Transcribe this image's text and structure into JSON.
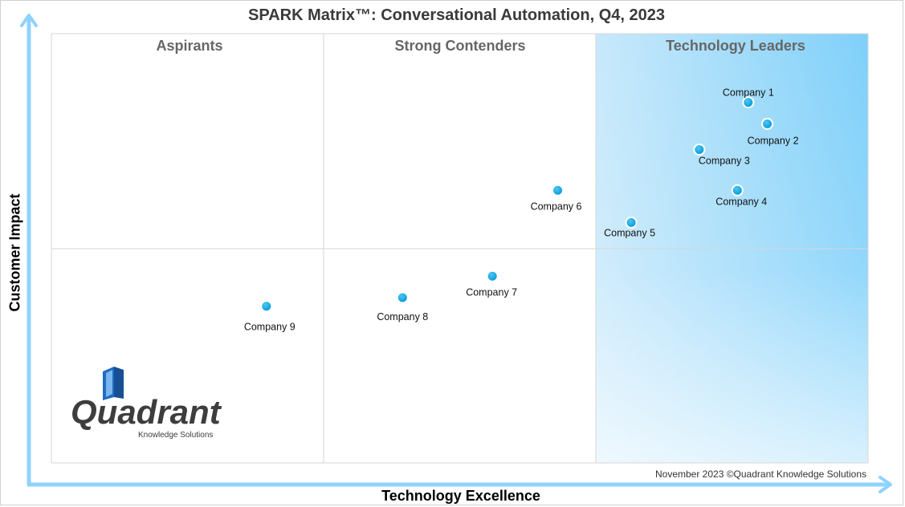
{
  "chart_data": {
    "type": "scatter",
    "title": "SPARK Matrix™: Conversational Automation, Q4, 2023",
    "xlabel": "Technology Excellence",
    "ylabel": "Customer Impact",
    "xlim": [
      0,
      3
    ],
    "ylim": [
      0,
      2
    ],
    "quadrants": [
      "Aspirants",
      "Strong Contenders",
      "Technology Leaders"
    ],
    "points": [
      {
        "label": "Company 1",
        "x": 2.56,
        "y": 1.68
      },
      {
        "label": "Company 2",
        "x": 2.63,
        "y": 1.58
      },
      {
        "label": "Company 3",
        "x": 2.38,
        "y": 1.46
      },
      {
        "label": "Company 4",
        "x": 2.52,
        "y": 1.27
      },
      {
        "label": "Company 5",
        "x": 2.13,
        "y": 1.12
      },
      {
        "label": "Company 6",
        "x": 1.86,
        "y": 1.27
      },
      {
        "label": "Company 7",
        "x": 1.62,
        "y": 0.87
      },
      {
        "label": "Company 8",
        "x": 1.29,
        "y": 0.77
      },
      {
        "label": "Company 9",
        "x": 0.79,
        "y": 0.73
      }
    ],
    "colors": {
      "marker": "#00a7e6",
      "axis": "#8fd3ff",
      "leaders_fill": "#7fd0fa"
    }
  },
  "footer": {
    "copyright": "November 2023 ©Quadrant Knowledge Solutions"
  },
  "logo": {
    "name": "Quadrant",
    "tagline": "Knowledge Solutions"
  }
}
